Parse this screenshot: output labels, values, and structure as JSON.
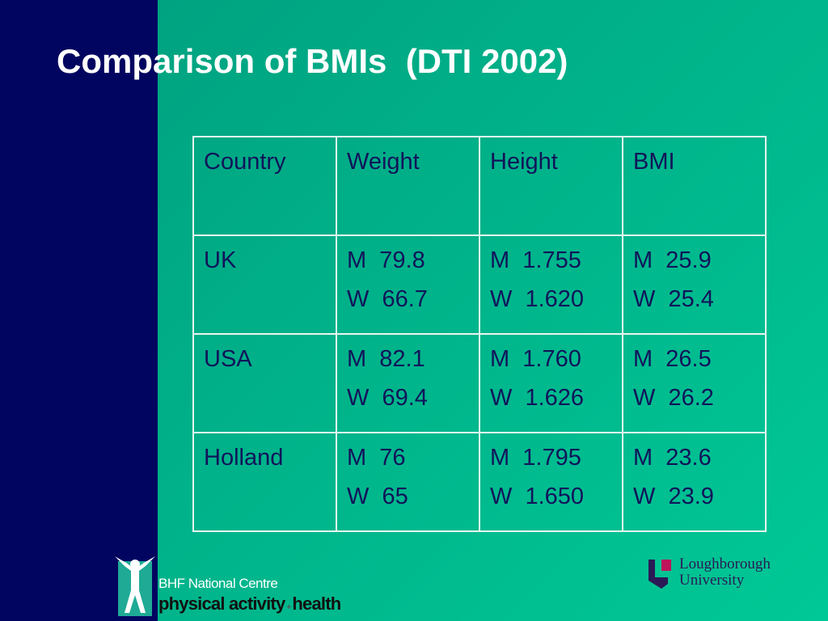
{
  "header": {
    "title": "Comparison of BMIs  (DTI 2002)"
  },
  "table": {
    "columns": [
      "Country",
      "Weight",
      "Height",
      "BMI"
    ],
    "rows": [
      [
        "UK",
        [
          "M  79.8",
          "W  66.7"
        ],
        [
          "M  1.755",
          "W  1.620"
        ],
        [
          "M  25.9",
          "W  25.4"
        ]
      ],
      [
        "USA",
        [
          "M  82.1",
          "W  69.4"
        ],
        [
          "M  1.760",
          "W  1.626"
        ],
        [
          "M  26.5",
          "W  26.2"
        ]
      ],
      [
        "Holland",
        [
          "M  76",
          "W  65"
        ],
        [
          "M  1.795",
          "W  1.650"
        ],
        [
          "M  23.6",
          "W  23.9"
        ]
      ]
    ]
  },
  "logos": {
    "bhf": {
      "line1": "BHF National Centre",
      "line2a": "physical activity",
      "line2b": "health"
    },
    "lboro": {
      "line1": "Loughborough",
      "line2": "University"
    }
  }
}
